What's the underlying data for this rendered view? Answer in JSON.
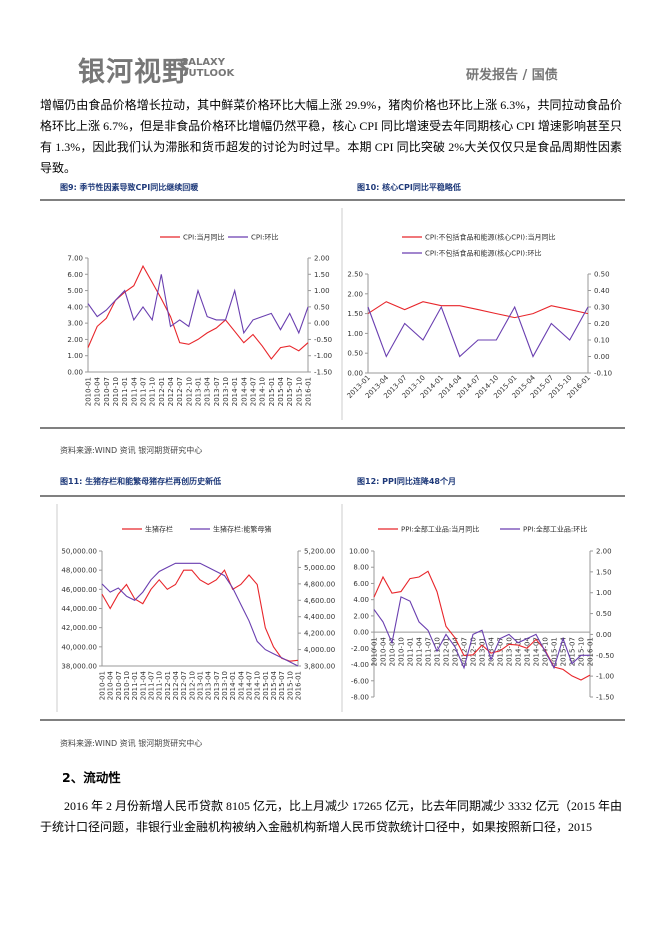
{
  "header": {
    "logo_cn": "银河视野",
    "logo_en_1": "GALAXY",
    "logo_en_2": "OUTLOOK",
    "section": "研发报告 / 国债"
  },
  "paragraph_1": "增幅仍由食品价格增长拉动，其中鲜菜价格环比大幅上涨 29.9%，猪肉价格也环比上涨 6.3%，共同拉动食品价格环比上涨 6.7%，但是非食品价格环比增幅仍然平稳，核心 CPI 同比增速受去年同期核心 CPI 增速影响甚至只有 1.3%，因此我们认为滞胀和货币超发的讨论为时过早。本期 CPI 同比突破 2%大关仅仅只是食品周期性因素导致。",
  "figures": [
    {
      "caption": "图9: 季节性因素导致CPI同比继续回暖",
      "chart_data": {
        "type": "line",
        "categories": [
          "2010-01",
          "2010-04",
          "2010-07",
          "2010-10",
          "2011-01",
          "2011-04",
          "2011-07",
          "2011-10",
          "2012-01",
          "2012-04",
          "2012-07",
          "2012-10",
          "2013-01",
          "2013-04",
          "2013-07",
          "2013-10",
          "2014-01",
          "2014-04",
          "2014-07",
          "2014-10",
          "2015-01",
          "2015-04",
          "2015-07",
          "2015-10",
          "2016-01"
        ],
        "series": [
          {
            "name": "CPI:当月同比",
            "color": "#e8262b",
            "values": [
              1.5,
              2.8,
              3.3,
              4.4,
              4.9,
              5.3,
              6.5,
              5.5,
              4.5,
              3.4,
              1.8,
              1.7,
              2.0,
              2.4,
              2.7,
              3.2,
              2.5,
              1.8,
              2.3,
              1.6,
              0.8,
              1.5,
              1.6,
              1.3,
              1.8
            ]
          },
          {
            "name": "CPI:环比",
            "color": "#6a3fb0",
            "axis": "y2",
            "values": [
              0.6,
              0.2,
              0.4,
              0.7,
              1.0,
              0.1,
              0.5,
              0.1,
              1.5,
              -0.1,
              0.1,
              -0.1,
              1.0,
              0.2,
              0.1,
              0.1,
              1.0,
              -0.3,
              0.1,
              0.2,
              0.3,
              -0.2,
              0.3,
              -0.3,
              0.5
            ]
          }
        ],
        "ylim": [
          0,
          7
        ],
        "yticks": [
          {
            "value": 0,
            "label": "0.00"
          },
          {
            "value": 1,
            "label": "1.00"
          },
          {
            "value": 2,
            "label": "2.00"
          },
          {
            "value": 3,
            "label": "3.00"
          },
          {
            "value": 4,
            "label": "4.00"
          },
          {
            "value": 5,
            "label": "5.00"
          },
          {
            "value": 6,
            "label": "6.00"
          },
          {
            "value": 7,
            "label": "7.00"
          }
        ],
        "y2lim": [
          -1.5,
          2
        ],
        "y2ticks": [
          {
            "value": -1.5,
            "label": "-1.50"
          },
          {
            "value": -1,
            "label": "-1.00"
          },
          {
            "value": -0.5,
            "label": "-0.50"
          },
          {
            "value": 0,
            "label": "0.00"
          },
          {
            "value": 0.5,
            "label": "0.50"
          },
          {
            "value": 1,
            "label": "1.00"
          },
          {
            "value": 1.5,
            "label": "1.50"
          },
          {
            "value": 2,
            "label": "2.00"
          }
        ]
      }
    },
    {
      "caption": "图10: 核心CPI同比平稳略低",
      "chart_data": {
        "type": "line",
        "categories": [
          "2013-01",
          "2013-04",
          "2013-07",
          "2013-10",
          "2014-01",
          "2014-04",
          "2014-07",
          "2014-10",
          "2015-01",
          "2015-04",
          "2015-07",
          "2015-10",
          "2016-01"
        ],
        "series": [
          {
            "name": "CPI:不包括食品和能源(核心CPI):当月同比",
            "color": "#e8262b",
            "values": [
              1.5,
              1.8,
              1.6,
              1.8,
              1.7,
              1.7,
              1.6,
              1.5,
              1.4,
              1.5,
              1.7,
              1.6,
              1.5
            ]
          },
          {
            "name": "CPI:不包括食品和能源(核心CPI):环比",
            "color": "#6a3fb0",
            "axis": "y2",
            "values": [
              0.3,
              0.0,
              0.2,
              0.1,
              0.3,
              0.0,
              0.1,
              0.1,
              0.3,
              0.0,
              0.2,
              0.1,
              0.3
            ]
          }
        ],
        "ylim": [
          0,
          2.5
        ],
        "yticks": [
          {
            "value": 0,
            "label": "0.00"
          },
          {
            "value": 0.5,
            "label": "0.50"
          },
          {
            "value": 1,
            "label": "1.00"
          },
          {
            "value": 1.5,
            "label": "1.50"
          },
          {
            "value": 2,
            "label": "2.00"
          },
          {
            "value": 2.5,
            "label": "2.50"
          }
        ],
        "y2lim": [
          -0.1,
          0.5
        ],
        "y2ticks": [
          {
            "value": -0.1,
            "label": "-0.10"
          },
          {
            "value": 0,
            "label": "0.00"
          },
          {
            "value": 0.1,
            "label": "0.10"
          },
          {
            "value": 0.2,
            "label": "0.20"
          },
          {
            "value": 0.3,
            "label": "0.30"
          },
          {
            "value": 0.4,
            "label": "0.40"
          },
          {
            "value": 0.5,
            "label": "0.50"
          }
        ]
      }
    },
    {
      "caption": "图11: 生猪存栏和能繁母猪存栏再创历史新低",
      "chart_data": {
        "type": "line",
        "categories": [
          "2010-01",
          "2010-04",
          "2010-07",
          "2010-10",
          "2011-01",
          "2011-04",
          "2011-07",
          "2011-10",
          "2012-01",
          "2012-04",
          "2012-07",
          "2012-10",
          "2013-01",
          "2013-04",
          "2013-07",
          "2013-10",
          "2014-01",
          "2014-04",
          "2014-07",
          "2014-10",
          "2015-01",
          "2015-04",
          "2015-07",
          "2015-10",
          "2016-01"
        ],
        "series": [
          {
            "name": "生猪存栏",
            "color": "#e8262b",
            "values": [
              45500,
              44000,
              45500,
              46500,
              45000,
              44500,
              46000,
              47000,
              46000,
              46500,
              48000,
              48000,
              47000,
              46500,
              47000,
              48000,
              46000,
              46500,
              47500,
              46500,
              42000,
              40000,
              38800,
              38500,
              38600
            ]
          },
          {
            "name": "生猪存栏:能繁母猪",
            "color": "#6a3fb0",
            "axis": "y2",
            "values": [
              4800,
              4700,
              4750,
              4650,
              4600,
              4700,
              4850,
              4950,
              5000,
              5050,
              5050,
              5050,
              5050,
              5000,
              4950,
              4900,
              4750,
              4550,
              4350,
              4100,
              4000,
              3950,
              3900,
              3850,
              3800
            ]
          }
        ],
        "ylim": [
          38000,
          50000
        ],
        "yticks": [
          {
            "value": 38000,
            "label": "38,000.00"
          },
          {
            "value": 40000,
            "label": "40,000.00"
          },
          {
            "value": 42000,
            "label": "42,000.00"
          },
          {
            "value": 44000,
            "label": "44,000.00"
          },
          {
            "value": 46000,
            "label": "46,000.00"
          },
          {
            "value": 48000,
            "label": "48,000.00"
          },
          {
            "value": 50000,
            "label": "50,000.00"
          }
        ],
        "y2lim": [
          3800,
          5200
        ],
        "y2ticks": [
          {
            "value": 3800,
            "label": "3,800.00"
          },
          {
            "value": 4000,
            "label": "4,000.00"
          },
          {
            "value": 4200,
            "label": "4,200.00"
          },
          {
            "value": 4400,
            "label": "4,400.00"
          },
          {
            "value": 4600,
            "label": "4,600.00"
          },
          {
            "value": 4800,
            "label": "4,800.00"
          },
          {
            "value": 5000,
            "label": "5,000.00"
          },
          {
            "value": 5200,
            "label": "5,200.00"
          }
        ]
      }
    },
    {
      "caption": "图12: PPI同比连降48个月",
      "chart_data": {
        "type": "line",
        "categories": [
          "2010-01",
          "2010-04",
          "2010-07",
          "2010-10",
          "2011-01",
          "2011-04",
          "2011-07",
          "2011-10",
          "2012-01",
          "2012-04",
          "2012-07",
          "2012-10",
          "2013-01",
          "2013-04",
          "2013-07",
          "2013-10",
          "2014-01",
          "2014-04",
          "2014-07",
          "2014-10",
          "2015-01",
          "2015-04",
          "2015-07",
          "2015-10",
          "2016-01"
        ],
        "series": [
          {
            "name": "PPI:全部工业品:当月同比",
            "color": "#e8262b",
            "values": [
              4.3,
              6.8,
              4.8,
              5.0,
              6.6,
              6.8,
              7.5,
              5.0,
              0.7,
              -0.7,
              -2.9,
              -2.8,
              -1.6,
              -2.6,
              -2.3,
              -1.5,
              -1.6,
              -2.0,
              -0.9,
              -2.2,
              -4.3,
              -4.6,
              -5.4,
              -5.9,
              -5.3
            ]
          },
          {
            "name": "PPI:全部工业品:环比",
            "color": "#6a3fb0",
            "axis": "y2",
            "values": [
              0.6,
              0.3,
              -0.2,
              0.9,
              0.8,
              0.3,
              0.1,
              -0.4,
              0.0,
              -0.3,
              -0.8,
              0.0,
              0.1,
              -0.6,
              -0.1,
              0.0,
              -0.2,
              -0.1,
              0.0,
              -0.4,
              -0.8,
              -0.1,
              -0.7,
              -0.5,
              -0.5
            ]
          }
        ],
        "ylim": [
          -8,
          10
        ],
        "yticks": [
          {
            "value": -8,
            "label": "-8.00"
          },
          {
            "value": -6,
            "label": "-6.00"
          },
          {
            "value": -4,
            "label": "-4.00"
          },
          {
            "value": -2,
            "label": "-2.00"
          },
          {
            "value": 0,
            "label": "0.00"
          },
          {
            "value": 2,
            "label": "2.00"
          },
          {
            "value": 4,
            "label": "4.00"
          },
          {
            "value": 6,
            "label": "6.00"
          },
          {
            "value": 8,
            "label": "8.00"
          },
          {
            "value": 10,
            "label": "10.00"
          }
        ],
        "y2lim": [
          -1.5,
          2
        ],
        "y2ticks": [
          {
            "value": -1.5,
            "label": "-1.50"
          },
          {
            "value": -1,
            "label": "-1.00"
          },
          {
            "value": -0.5,
            "label": "-0.50"
          },
          {
            "value": 0,
            "label": "0.00"
          },
          {
            "value": 0.5,
            "label": "0.50"
          },
          {
            "value": 1,
            "label": "1.00"
          },
          {
            "value": 1.5,
            "label": "1.50"
          },
          {
            "value": 2,
            "label": "2.00"
          }
        ]
      }
    }
  ],
  "sources": [
    "资料来源:WIND 资讯   银河期货研究中心",
    "资料来源:WIND 资讯   银河期货研究中心"
  ],
  "section_title": "2、流动性",
  "paragraph_2": "2016 年 2 月份新增人民币贷款 8105 亿元，比上月减少 17265 亿元，比去年同期减少 3332 亿元（2015 年由于统计口径问题，非银行业金融机构被纳入金融机构新增人民币贷款统计口径中，如果按照新口径，2015"
}
